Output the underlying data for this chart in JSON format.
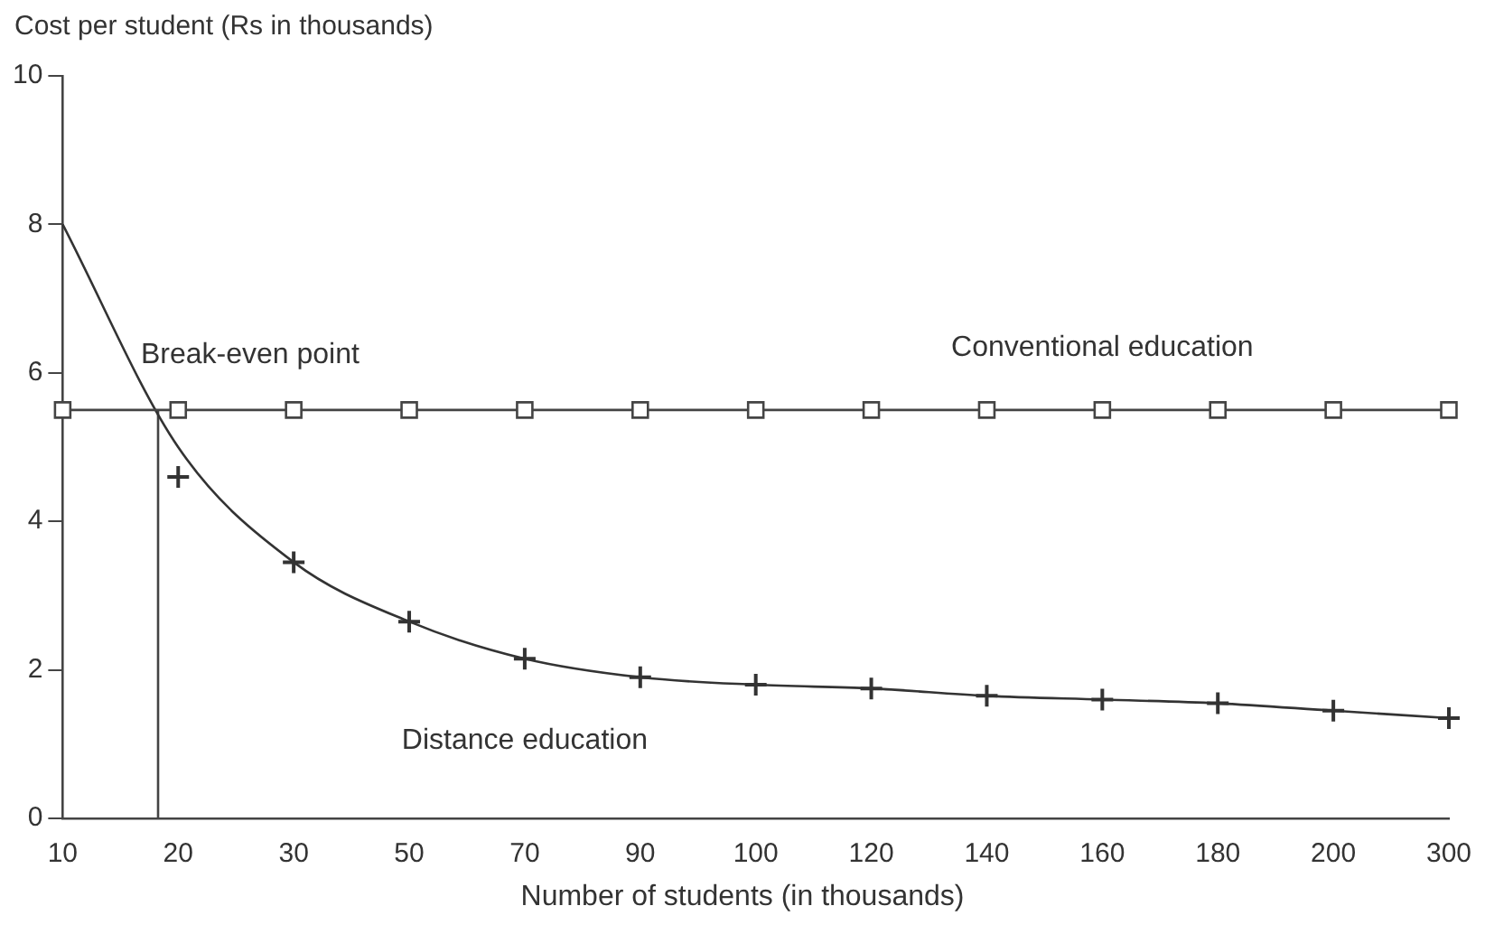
{
  "chart_data": {
    "type": "line",
    "xlabel": "Number of students (in thousands)",
    "ylabel": "Cost per student (Rs in thousands)",
    "categories": [
      "10",
      "20",
      "30",
      "50",
      "70",
      "90",
      "100",
      "120",
      "140",
      "160",
      "180",
      "200",
      "300"
    ],
    "series": [
      {
        "name": "Conventional education",
        "color": "#444444",
        "marker": "square",
        "values": [
          5.5,
          5.5,
          5.5,
          5.5,
          5.5,
          5.5,
          5.5,
          5.5,
          5.5,
          5.5,
          5.5,
          5.5,
          5.5
        ]
      },
      {
        "name": "Distance education",
        "color": "#333333",
        "marker": "none",
        "values": [
          8.0,
          5.0,
          3.45,
          2.65,
          2.15,
          1.9,
          1.8,
          1.75,
          1.65,
          1.6,
          1.55,
          1.45,
          1.35
        ]
      },
      {
        "type": "scatter",
        "color": "#333333",
        "marker": "cross",
        "values": [
          null,
          4.6,
          3.45,
          2.65,
          2.15,
          1.9,
          1.8,
          1.75,
          1.65,
          1.6,
          1.55,
          1.45,
          1.35
        ]
      }
    ],
    "ylim": [
      0,
      10
    ],
    "yticks": [
      0,
      2,
      4,
      6,
      8,
      10
    ],
    "grid": false,
    "legend": false,
    "annotations": [
      "Break-even point"
    ]
  }
}
